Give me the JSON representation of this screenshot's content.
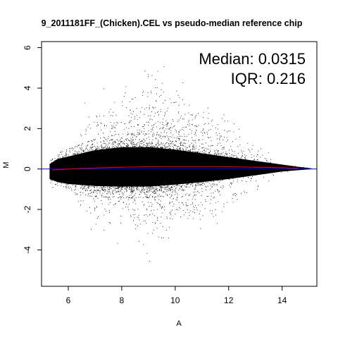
{
  "chart_data": {
    "type": "scatter",
    "title": "9_2011181FF_(Chicken).CEL vs pseudo-median reference chip",
    "xlabel": "A",
    "ylabel": "M",
    "xlim": [
      5.0,
      15.3
    ],
    "ylim": [
      -5.8,
      6.3
    ],
    "x_ticks": [
      6,
      8,
      10,
      12,
      14
    ],
    "x_tick_labels": [
      "6",
      "8",
      "10",
      "12",
      "14"
    ],
    "y_ticks": [
      -4,
      -2,
      0,
      2,
      4,
      6
    ],
    "y_tick_labels": [
      "-4",
      "-2",
      "0",
      "2",
      "4",
      "6"
    ],
    "annotations": [
      {
        "text": "Median: 0.0315"
      },
      {
        "text": "IQR: 0.216"
      }
    ],
    "reference_line": {
      "y": 0,
      "color": "#0000ff"
    },
    "loess_curve": {
      "color": "#ff0000",
      "x": [
        5.4,
        6.0,
        7.0,
        8.0,
        9.0,
        10.0,
        11.0,
        12.0,
        13.0,
        14.0,
        14.6
      ],
      "y": [
        -0.05,
        0.0,
        0.05,
        0.09,
        0.11,
        0.12,
        0.12,
        0.11,
        0.09,
        0.06,
        0.03
      ]
    },
    "density_envelope": {
      "x": [
        5.3,
        5.6,
        6.0,
        7.0,
        8.0,
        9.0,
        10.0,
        11.0,
        12.0,
        13.0,
        14.0,
        14.6,
        15.1
      ],
      "upper": [
        0.4,
        0.8,
        1.0,
        1.5,
        1.75,
        1.75,
        1.55,
        1.25,
        0.95,
        0.65,
        0.35,
        0.18,
        0.05
      ],
      "lower": [
        -0.8,
        -1.05,
        -1.2,
        -1.35,
        -1.4,
        -1.4,
        -1.25,
        -1.05,
        -0.8,
        -0.5,
        -0.2,
        -0.1,
        -0.02
      ]
    },
    "outliers_range": {
      "x": [
        6.0,
        13.5
      ],
      "y": [
        -5.4,
        5.5
      ]
    },
    "colors": {
      "points": "#000000",
      "loess": "#ff0000",
      "zero_line": "#0000ff"
    }
  }
}
